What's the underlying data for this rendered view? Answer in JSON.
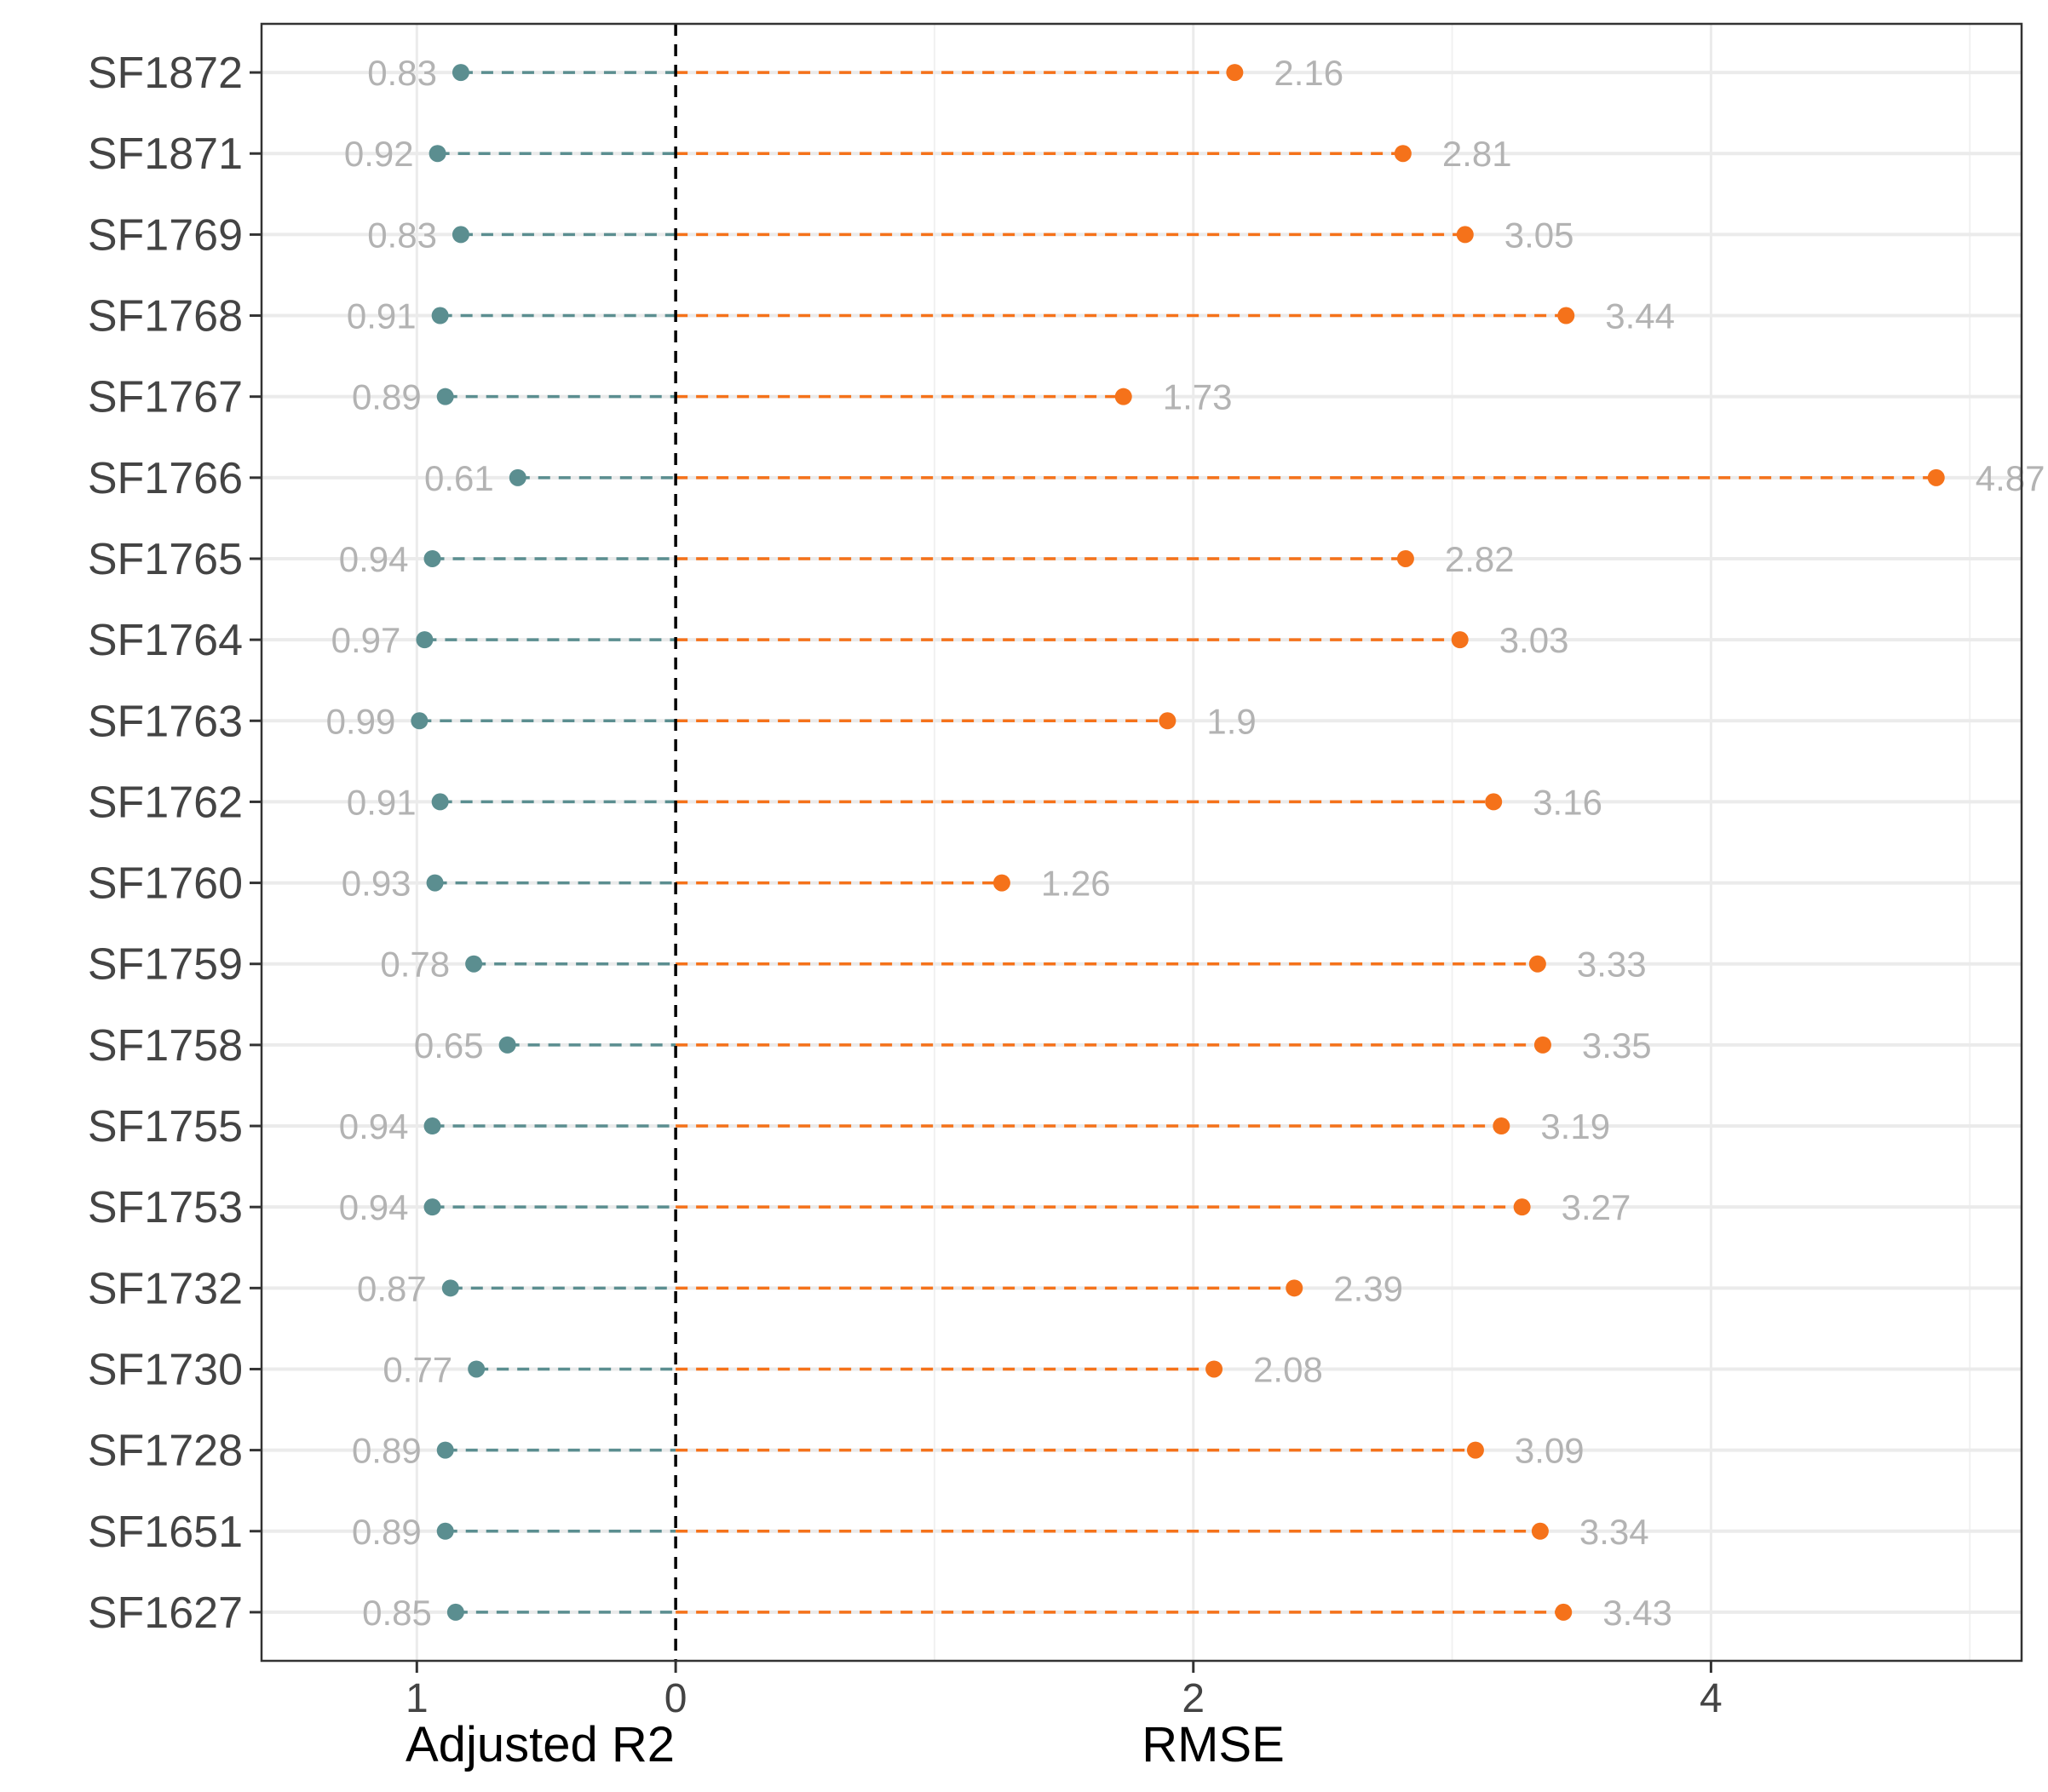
{
  "chart_data": {
    "type": "lollipop",
    "categories": [
      "SF1872",
      "SF1871",
      "SF1769",
      "SF1768",
      "SF1767",
      "SF1766",
      "SF1765",
      "SF1764",
      "SF1763",
      "SF1762",
      "SF1760",
      "SF1759",
      "SF1758",
      "SF1755",
      "SF1753",
      "SF1732",
      "SF1730",
      "SF1728",
      "SF1651",
      "SF1627"
    ],
    "series": [
      {
        "name": "Adjusted R2",
        "side": "left",
        "color": "#5b8e90",
        "values": [
          0.83,
          0.92,
          0.83,
          0.91,
          0.89,
          0.61,
          0.94,
          0.97,
          0.99,
          0.91,
          0.93,
          0.78,
          0.65,
          0.94,
          0.94,
          0.87,
          0.77,
          0.89,
          0.89,
          0.85
        ],
        "labels": [
          "0.83",
          "0.92",
          "0.83",
          "0.91",
          "0.89",
          "0.61",
          "0.94",
          "0.97",
          "0.99",
          "0.91",
          "0.93",
          "0.78",
          "0.65",
          "0.94",
          "0.94",
          "0.87",
          "0.77",
          "0.89",
          "0.89",
          "0.85"
        ]
      },
      {
        "name": "RMSE",
        "side": "right",
        "color": "#f5721a",
        "values": [
          2.16,
          2.81,
          3.05,
          3.44,
          1.73,
          4.87,
          2.82,
          3.03,
          1.9,
          3.16,
          1.26,
          3.33,
          3.35,
          3.19,
          3.27,
          2.39,
          2.08,
          3.09,
          3.34,
          3.43
        ],
        "labels": [
          "2.16",
          "2.81",
          "3.05",
          "3.44",
          "1.73",
          "4.87",
          "2.82",
          "3.03",
          "1.9",
          "3.16",
          "1.26",
          "3.33",
          "3.35",
          "3.19",
          "3.27",
          "2.39",
          "2.08",
          "3.09",
          "3.34",
          "3.43"
        ]
      }
    ],
    "xlabel_left": "Adjusted R2",
    "xlabel_right": "RMSE",
    "xlim": [
      -1.6,
      5.2
    ],
    "x_ticks": [
      {
        "value": -1,
        "label": "1"
      },
      {
        "value": 0,
        "label": "0"
      },
      {
        "value": 2,
        "label": "2"
      },
      {
        "value": 4,
        "label": "4"
      }
    ],
    "x_minor_ticks": [
      1,
      3,
      5
    ],
    "zero_line": "dashed black",
    "grid": true,
    "legend": "none",
    "label_color": "#b3b3b3"
  }
}
